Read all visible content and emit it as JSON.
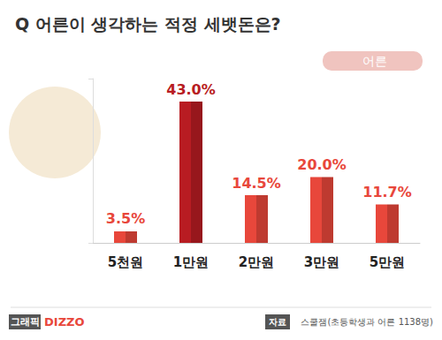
{
  "chart_data": {
    "type": "bar",
    "title": "Q 어른이 생각하는 적정 세뱃돈은?",
    "categories": [
      "5천원",
      "1만원",
      "2만원",
      "3만원",
      "5만원"
    ],
    "series": [
      {
        "name": "어른",
        "colors": [
          "#e8473b",
          "#b81c22",
          "#e8473b",
          "#e8473b",
          "#e8473b"
        ],
        "values": [
          3.5,
          43.0,
          14.5,
          20.0,
          11.7
        ],
        "value_labels": [
          "3.5%",
          "43.0%",
          "14.5%",
          "20.0%",
          "11.7%"
        ]
      }
    ],
    "ylim": [
      0,
      50
    ],
    "yticks": [
      0,
      50
    ],
    "grid": false,
    "legend": "upper right",
    "data_labels": true,
    "tick_labels": "x",
    "annotations": [
      "그래픽",
      "DIZZO",
      "자료",
      "스쿨잼(초등학생과 어른 1138명)"
    ]
  }
}
